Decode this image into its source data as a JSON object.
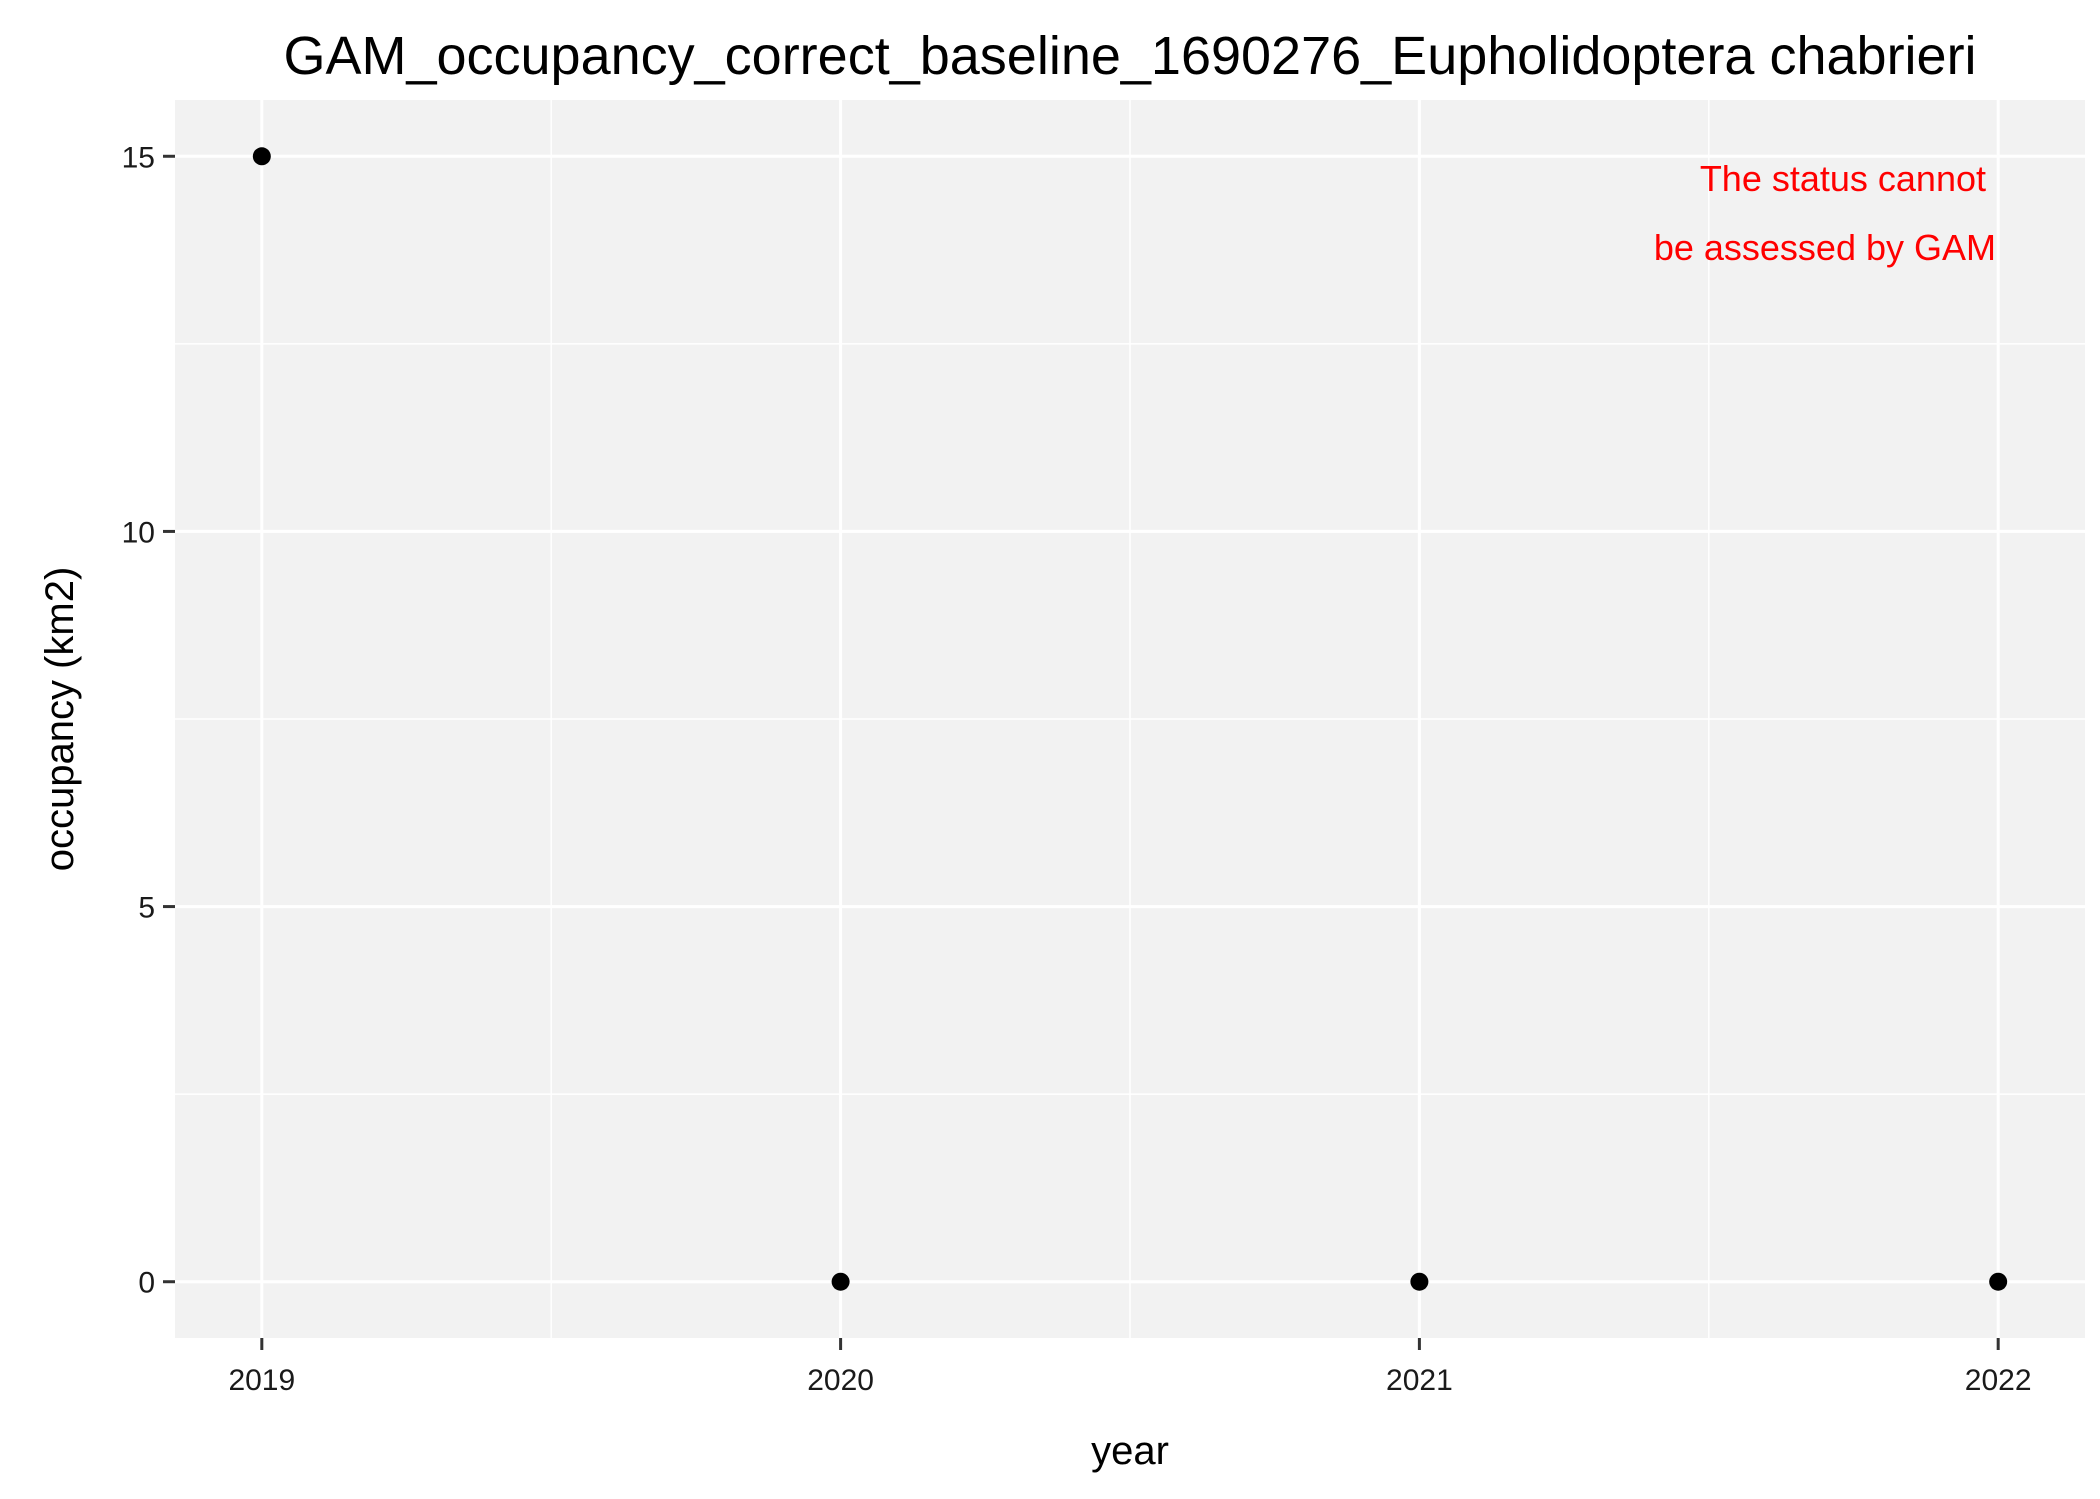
{
  "chart_data": {
    "type": "scatter",
    "title": "GAM_occupancy_correct_baseline_1690276_Eupholidoptera chabrieri",
    "xlabel": "year",
    "ylabel": "occupancy (km2)",
    "x": [
      2019,
      2020,
      2021,
      2022
    ],
    "y": [
      15,
      0,
      0,
      0
    ],
    "x_ticks": [
      "2019",
      "2020",
      "2021",
      "2022"
    ],
    "y_ticks": [
      "0",
      "5",
      "10",
      "15"
    ],
    "xlim": [
      2018.85,
      2022.15
    ],
    "ylim": [
      -0.75,
      15.75
    ],
    "grid": true,
    "annotation": {
      "lines": [
        "The status cannot",
        "be assessed by GAM"
      ],
      "color": "#ff0000",
      "position": "top-right"
    },
    "colors": {
      "panel_background": "#f2f2f2",
      "grid_major": "#ffffff",
      "grid_minor": "#ffffff",
      "point": "#000000"
    }
  }
}
